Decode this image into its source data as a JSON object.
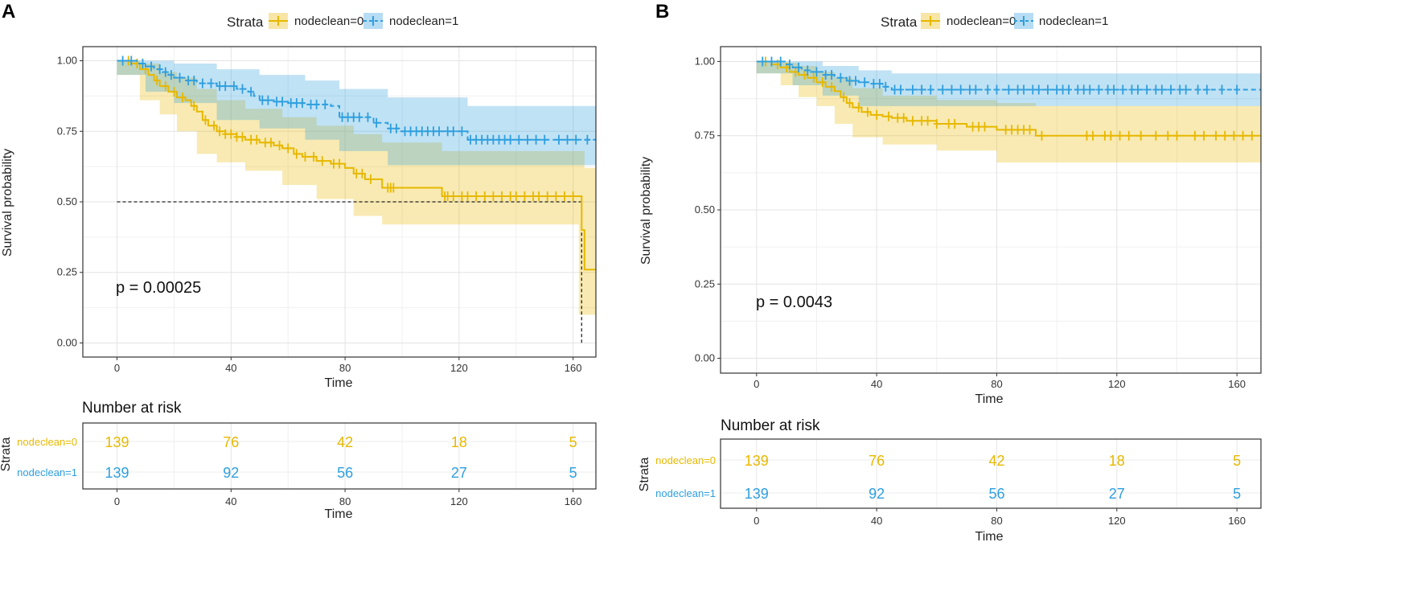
{
  "legend": {
    "title": "Strata",
    "entries": [
      "nodeclean=0",
      "nodeclean=1"
    ]
  },
  "colors": {
    "nodeclean0": "#E7B800",
    "nodeclean1": "#2E9FDF"
  },
  "chart_data": [
    {
      "panel": "A",
      "type": "line",
      "title": "",
      "xlabel": "Time",
      "ylabel": "Survival probability",
      "xlim": [
        -12,
        168
      ],
      "ylim": [
        -0.05,
        1.05
      ],
      "x_ticks": [
        0,
        40,
        80,
        120,
        160
      ],
      "y_ticks": [
        0.0,
        0.25,
        0.5,
        0.75,
        1.0
      ],
      "y_tick_labels": [
        "0.00",
        "0.25",
        "0.50",
        "0.75",
        "1.00"
      ],
      "pvalue": "p = 0.00025",
      "median_line": {
        "y": 0.5,
        "x": 163
      },
      "series": [
        {
          "name": "nodeclean=0",
          "steps": [
            [
              0,
              1.0
            ],
            [
              5,
              0.99
            ],
            [
              8,
              0.97
            ],
            [
              11,
              0.95
            ],
            [
              13,
              0.93
            ],
            [
              15,
              0.91
            ],
            [
              18,
              0.89
            ],
            [
              21,
              0.87
            ],
            [
              24,
              0.86
            ],
            [
              26,
              0.84
            ],
            [
              28,
              0.82
            ],
            [
              30,
              0.79
            ],
            [
              32,
              0.77
            ],
            [
              35,
              0.75
            ],
            [
              38,
              0.74
            ],
            [
              42,
              0.73
            ],
            [
              45,
              0.72
            ],
            [
              50,
              0.71
            ],
            [
              55,
              0.7
            ],
            [
              58,
              0.69
            ],
            [
              62,
              0.67
            ],
            [
              65,
              0.66
            ],
            [
              70,
              0.645
            ],
            [
              75,
              0.635
            ],
            [
              80,
              0.62
            ],
            [
              83,
              0.6
            ],
            [
              87,
              0.58
            ],
            [
              93,
              0.55
            ],
            [
              98,
              0.55
            ],
            [
              114,
              0.52
            ],
            [
              162,
              0.52
            ],
            [
              163,
              0.4
            ],
            [
              164,
              0.26
            ],
            [
              168,
              0.26
            ]
          ],
          "upper": [
            [
              0,
              1.0
            ],
            [
              8,
              0.99
            ],
            [
              15,
              0.96
            ],
            [
              21,
              0.94
            ],
            [
              28,
              0.9
            ],
            [
              35,
              0.86
            ],
            [
              45,
              0.83
            ],
            [
              58,
              0.8
            ],
            [
              70,
              0.77
            ],
            [
              83,
              0.74
            ],
            [
              93,
              0.71
            ],
            [
              114,
              0.68
            ],
            [
              125,
              0.68
            ],
            [
              164,
              0.62
            ],
            [
              168,
              0.62
            ]
          ],
          "lower": [
            [
              0,
              1.0
            ],
            [
              8,
              0.95
            ],
            [
              15,
              0.86
            ],
            [
              21,
              0.81
            ],
            [
              28,
              0.75
            ],
            [
              35,
              0.67
            ],
            [
              45,
              0.64
            ],
            [
              58,
              0.61
            ],
            [
              70,
              0.56
            ],
            [
              83,
              0.51
            ],
            [
              93,
              0.45
            ],
            [
              114,
              0.42
            ],
            [
              162,
              0.42
            ],
            [
              164,
              0.1
            ],
            [
              168,
              0.1
            ]
          ],
          "censor_x": [
            4,
            7,
            10,
            14,
            17,
            20,
            23,
            27,
            31,
            34,
            36,
            38,
            40,
            42,
            44,
            47,
            49,
            52,
            54,
            57,
            60,
            63,
            66,
            69,
            72,
            76,
            78,
            84,
            86,
            89,
            95,
            96,
            97,
            115,
            116,
            118,
            121,
            123,
            126,
            129,
            132,
            135,
            138,
            140,
            143,
            146,
            148,
            151,
            154,
            157,
            160
          ]
        },
        {
          "name": "nodeclean=1",
          "steps": [
            [
              0,
              1.0
            ],
            [
              7,
              0.99
            ],
            [
              10,
              0.98
            ],
            [
              13,
              0.97
            ],
            [
              16,
              0.96
            ],
            [
              18,
              0.95
            ],
            [
              20,
              0.94
            ],
            [
              24,
              0.93
            ],
            [
              28,
              0.92
            ],
            [
              35,
              0.91
            ],
            [
              42,
              0.9
            ],
            [
              46,
              0.89
            ],
            [
              48,
              0.875
            ],
            [
              50,
              0.86
            ],
            [
              55,
              0.855
            ],
            [
              60,
              0.85
            ],
            [
              66,
              0.845
            ],
            [
              75,
              0.84
            ],
            [
              78,
              0.8
            ],
            [
              90,
              0.78
            ],
            [
              95,
              0.76
            ],
            [
              99,
              0.75
            ],
            [
              123,
              0.72
            ],
            [
              168,
              0.72
            ]
          ],
          "upper": [
            [
              0,
              1.0
            ],
            [
              10,
              1.0
            ],
            [
              20,
              0.99
            ],
            [
              35,
              0.97
            ],
            [
              50,
              0.95
            ],
            [
              66,
              0.93
            ],
            [
              78,
              0.9
            ],
            [
              95,
              0.87
            ],
            [
              123,
              0.84
            ],
            [
              168,
              0.84
            ]
          ],
          "lower": [
            [
              0,
              1.0
            ],
            [
              10,
              0.95
            ],
            [
              20,
              0.89
            ],
            [
              35,
              0.85
            ],
            [
              50,
              0.79
            ],
            [
              66,
              0.76
            ],
            [
              78,
              0.72
            ],
            [
              95,
              0.68
            ],
            [
              123,
              0.63
            ],
            [
              168,
              0.63
            ]
          ],
          "censor_x": [
            2,
            5,
            9,
            12,
            15,
            17,
            19,
            22,
            25,
            27,
            30,
            33,
            36,
            38,
            41,
            44,
            47,
            51,
            53,
            56,
            58,
            61,
            63,
            65,
            68,
            70,
            73,
            79,
            81,
            83,
            85,
            88,
            91,
            96,
            98,
            101,
            103,
            105,
            107,
            109,
            111,
            113,
            116,
            118,
            121,
            124,
            126,
            128,
            130,
            132,
            134,
            136,
            138,
            141,
            144,
            147,
            150,
            155,
            158,
            161,
            165
          ]
        }
      ],
      "risk_table": {
        "title": "Number at risk",
        "ylabel": "Strata",
        "xlabel": "Time",
        "times": [
          0,
          40,
          80,
          120,
          160
        ],
        "rows": [
          {
            "name": "nodeclean=0",
            "values": [
              139,
              76,
              42,
              18,
              5
            ]
          },
          {
            "name": "nodeclean=1",
            "values": [
              139,
              92,
              56,
              27,
              5
            ]
          }
        ]
      }
    },
    {
      "panel": "B",
      "type": "line",
      "title": "",
      "xlabel": "Time",
      "ylabel": "Survival probability",
      "xlim": [
        -12,
        168
      ],
      "ylim": [
        -0.05,
        1.05
      ],
      "x_ticks": [
        0,
        40,
        80,
        120,
        160
      ],
      "y_ticks": [
        0.0,
        0.25,
        0.5,
        0.75,
        1.0
      ],
      "y_tick_labels": [
        "0.00",
        "0.25",
        "0.50",
        "0.75",
        "1.00"
      ],
      "pvalue": "p = 0.0043",
      "series": [
        {
          "name": "nodeclean=0",
          "steps": [
            [
              0,
              1.0
            ],
            [
              5,
              0.99
            ],
            [
              8,
              0.98
            ],
            [
              11,
              0.965
            ],
            [
              14,
              0.955
            ],
            [
              17,
              0.945
            ],
            [
              20,
              0.93
            ],
            [
              23,
              0.915
            ],
            [
              26,
              0.9
            ],
            [
              28,
              0.88
            ],
            [
              30,
              0.86
            ],
            [
              32,
              0.845
            ],
            [
              35,
              0.83
            ],
            [
              38,
              0.82
            ],
            [
              42,
              0.815
            ],
            [
              45,
              0.81
            ],
            [
              50,
              0.8
            ],
            [
              60,
              0.79
            ],
            [
              70,
              0.78
            ],
            [
              80,
              0.77
            ],
            [
              93,
              0.75
            ],
            [
              168,
              0.75
            ]
          ],
          "upper": [
            [
              0,
              1.0
            ],
            [
              8,
              0.995
            ],
            [
              14,
              0.985
            ],
            [
              20,
              0.965
            ],
            [
              26,
              0.945
            ],
            [
              32,
              0.91
            ],
            [
              42,
              0.885
            ],
            [
              60,
              0.87
            ],
            [
              80,
              0.86
            ],
            [
              93,
              0.85
            ],
            [
              168,
              0.85
            ]
          ],
          "lower": [
            [
              0,
              1.0
            ],
            [
              8,
              0.96
            ],
            [
              14,
              0.92
            ],
            [
              20,
              0.88
            ],
            [
              26,
              0.85
            ],
            [
              32,
              0.79
            ],
            [
              42,
              0.745
            ],
            [
              60,
              0.72
            ],
            [
              80,
              0.7
            ],
            [
              93,
              0.66
            ],
            [
              168,
              0.66
            ]
          ],
          "censor_x": [
            3,
            7,
            10,
            13,
            16,
            19,
            22,
            25,
            29,
            31,
            34,
            37,
            40,
            44,
            47,
            49,
            52,
            55,
            57,
            60,
            64,
            66,
            72,
            74,
            76,
            83,
            85,
            87,
            89,
            91,
            95,
            110,
            112,
            116,
            118,
            121,
            124,
            128,
            133,
            137,
            140,
            146,
            149,
            153,
            156,
            159,
            162,
            165
          ]
        },
        {
          "name": "nodeclean=1",
          "steps": [
            [
              0,
              1.0
            ],
            [
              10,
              0.99
            ],
            [
              12,
              0.98
            ],
            [
              15,
              0.97
            ],
            [
              18,
              0.965
            ],
            [
              22,
              0.955
            ],
            [
              26,
              0.945
            ],
            [
              30,
              0.935
            ],
            [
              34,
              0.93
            ],
            [
              38,
              0.925
            ],
            [
              42,
              0.915
            ],
            [
              45,
              0.905
            ],
            [
              168,
              0.905
            ]
          ],
          "upper": [
            [
              0,
              1.0
            ],
            [
              12,
              1.0
            ],
            [
              22,
              0.985
            ],
            [
              34,
              0.97
            ],
            [
              45,
              0.96
            ],
            [
              168,
              0.96
            ]
          ],
          "lower": [
            [
              0,
              1.0
            ],
            [
              12,
              0.96
            ],
            [
              22,
              0.92
            ],
            [
              34,
              0.885
            ],
            [
              45,
              0.85
            ],
            [
              168,
              0.85
            ]
          ],
          "censor_x": [
            2,
            5,
            8,
            11,
            14,
            17,
            20,
            23,
            25,
            28,
            31,
            33,
            36,
            39,
            41,
            43,
            46,
            48,
            52,
            55,
            58,
            62,
            65,
            68,
            71,
            73,
            77,
            80,
            84,
            87,
            89,
            92,
            94,
            97,
            100,
            102,
            104,
            107,
            109,
            111,
            114,
            117,
            119,
            122,
            125,
            127,
            130,
            133,
            135,
            138,
            141,
            143,
            147,
            150,
            155,
            160
          ]
        }
      ],
      "risk_table": {
        "title": "Number at risk",
        "ylabel": "Strata",
        "xlabel": "Time",
        "times": [
          0,
          40,
          80,
          120,
          160
        ],
        "rows": [
          {
            "name": "nodeclean=0",
            "values": [
              139,
              76,
              42,
              18,
              5
            ]
          },
          {
            "name": "nodeclean=1",
            "values": [
              139,
              92,
              56,
              27,
              5
            ]
          }
        ]
      }
    }
  ]
}
